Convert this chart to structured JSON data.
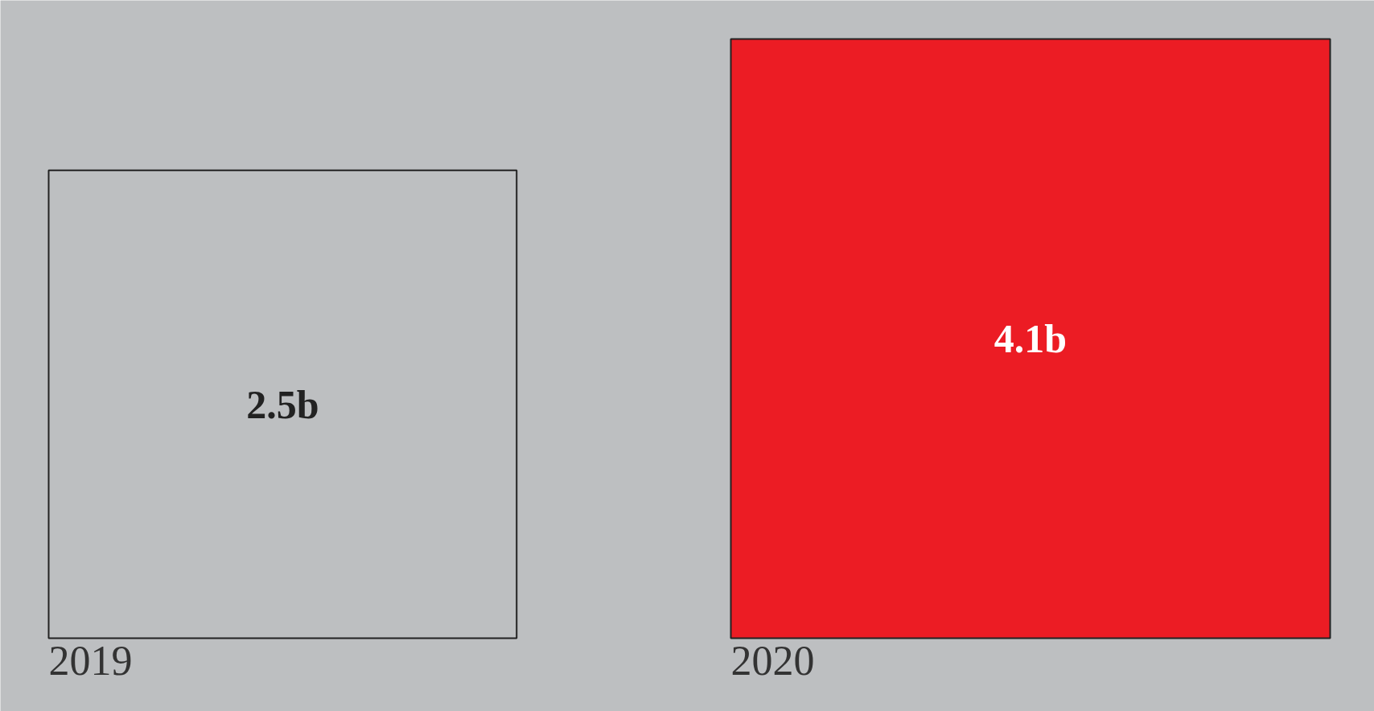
{
  "chart_data": {
    "type": "other",
    "categories": [
      "2019",
      "2020"
    ],
    "values": [
      2.5,
      4.1
    ],
    "colors": [
      "#bdbfc1",
      "#ec1c24"
    ],
    "value_labels": [
      "2.5b",
      "4.1b"
    ]
  }
}
